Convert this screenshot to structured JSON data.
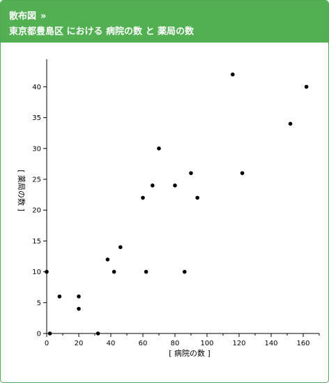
{
  "header": {
    "breadcrumb": "散布図",
    "breadcrumb_sep": "»",
    "title": "東京都豊島区 における 病院の数 と 薬局の数"
  },
  "colors": {
    "header_bg": "#52b052",
    "border": "#52a852",
    "point": "#000000",
    "axis": "#000000"
  },
  "chart_data": {
    "type": "scatter",
    "title": "東京都豊島区 における 病院の数 と 薬局の数",
    "xlabel": "[ 病院の数 ]",
    "ylabel": "[ 薬局の数 ]",
    "xlim": [
      0,
      170
    ],
    "ylim": [
      0,
      44
    ],
    "xticks": [
      "0",
      "20",
      "40",
      "60",
      "80",
      "100",
      "120",
      "140",
      "160"
    ],
    "yticks": [
      "0",
      "5",
      "10",
      "15",
      "20",
      "25",
      "30",
      "35",
      "40"
    ],
    "grid": false,
    "points": [
      {
        "x": 0,
        "y": 10
      },
      {
        "x": 2,
        "y": 0
      },
      {
        "x": 8,
        "y": 6
      },
      {
        "x": 20,
        "y": 6
      },
      {
        "x": 20,
        "y": 4
      },
      {
        "x": 32,
        "y": 0
      },
      {
        "x": 38,
        "y": 12
      },
      {
        "x": 42,
        "y": 10
      },
      {
        "x": 46,
        "y": 14
      },
      {
        "x": 60,
        "y": 22
      },
      {
        "x": 62,
        "y": 10
      },
      {
        "x": 66,
        "y": 24
      },
      {
        "x": 70,
        "y": 30
      },
      {
        "x": 80,
        "y": 24
      },
      {
        "x": 86,
        "y": 10
      },
      {
        "x": 90,
        "y": 26
      },
      {
        "x": 94,
        "y": 22
      },
      {
        "x": 116,
        "y": 42
      },
      {
        "x": 122,
        "y": 26
      },
      {
        "x": 152,
        "y": 34
      },
      {
        "x": 162,
        "y": 40
      }
    ]
  }
}
